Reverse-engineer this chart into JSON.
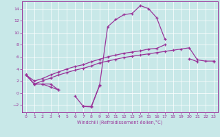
{
  "background_color": "#c8e8e8",
  "grid_color": "#ffffff",
  "line_color": "#993399",
  "xlim": [
    -0.5,
    23.5
  ],
  "ylim": [
    -3.2,
    15.2
  ],
  "yticks": [
    -2,
    0,
    2,
    4,
    6,
    8,
    10,
    12,
    14
  ],
  "xticks": [
    0,
    1,
    2,
    3,
    4,
    5,
    6,
    7,
    8,
    9,
    10,
    11,
    12,
    13,
    14,
    15,
    16,
    17,
    18,
    19,
    20,
    21,
    22,
    23
  ],
  "xlabel": "Windchill (Refroidissement éolien,°C)",
  "hours": [
    0,
    1,
    2,
    3,
    4,
    5,
    6,
    7,
    8,
    9,
    10,
    11,
    12,
    13,
    14,
    15,
    16,
    17,
    18,
    19,
    20,
    21,
    22,
    23
  ],
  "line_peak": [
    3.0,
    1.5,
    1.5,
    1.0,
    0.5,
    null,
    null,
    -2.2,
    -2.3,
    1.2,
    11.0,
    12.2,
    13.0,
    13.2,
    14.5,
    14.0,
    12.5,
    9.0,
    null,
    null,
    5.7,
    5.2,
    null,
    5.2
  ],
  "line_dip": [
    3.0,
    1.5,
    1.5,
    1.5,
    0.5,
    null,
    -0.5,
    -2.2,
    -2.2,
    1.3,
    null,
    null,
    null,
    null,
    null,
    null,
    null,
    null,
    null,
    null,
    null,
    null,
    null,
    null
  ],
  "line_flat1": [
    3.0,
    1.5,
    2.0,
    2.5,
    3.0,
    3.4,
    3.8,
    4.1,
    4.5,
    5.0,
    5.3,
    5.6,
    5.9,
    6.1,
    6.3,
    6.5,
    6.7,
    6.9,
    7.1,
    7.3,
    7.5,
    5.5,
    5.3,
    5.3
  ],
  "line_flat2": [
    3.0,
    2.0,
    2.4,
    3.0,
    3.5,
    4.0,
    4.4,
    4.7,
    5.2,
    5.6,
    6.0,
    6.3,
    6.6,
    6.8,
    7.0,
    7.3,
    7.4,
    8.0,
    null,
    null,
    null,
    null,
    null,
    null
  ]
}
